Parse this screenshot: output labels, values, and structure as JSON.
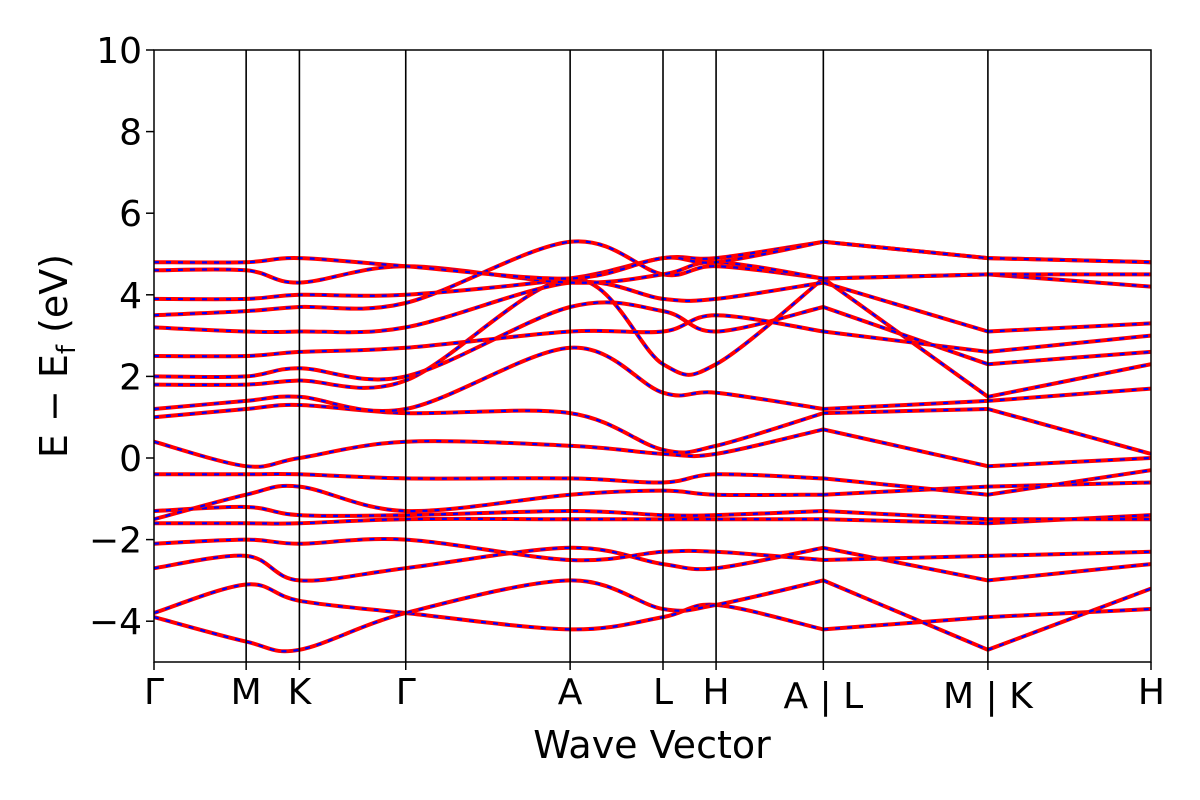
{
  "chart_data": {
    "type": "line",
    "title": "",
    "xlabel": "Wave Vector",
    "ylabel": "E − E",
    "ylabel_subscript": "f",
    "ylabel_unit": "(eV)",
    "ylim": [
      -5,
      10
    ],
    "yticks": [
      -4,
      -2,
      0,
      2,
      4,
      6,
      8,
      10
    ],
    "grid": false,
    "legend": "none",
    "kpoint_positions": [
      0,
      0.5,
      0.789,
      1.366,
      2.258,
      2.762,
      3.05,
      3.632,
      4.525,
      5.41
    ],
    "kpoint_labels": [
      "Γ",
      "M",
      "K",
      "Γ",
      "A",
      "L",
      "H",
      "A | L",
      "M | K",
      "H"
    ],
    "kpath_breaks": [
      3.632,
      4.525
    ],
    "colors": {
      "series_a": "#ff0000",
      "series_b": "#0000ff",
      "axis": "#000000"
    },
    "series": [
      {
        "name": "",
        "color": "#ff0000",
        "style": "solid"
      },
      {
        "name": "",
        "color": "#0000ff",
        "style": "dashed"
      }
    ],
    "bands": [
      [
        -3.8,
        -3.1,
        -3.5,
        -3.8,
        -4.2,
        -3.9,
        -3.6,
        -4.2,
        -3.9,
        -3.7
      ],
      [
        -3.9,
        -4.5,
        -4.7,
        -3.8,
        -3.0,
        -3.7,
        -3.6,
        -3.0,
        -4.7,
        -3.2
      ],
      [
        -2.7,
        -2.4,
        -3.0,
        -2.7,
        -2.2,
        -2.6,
        -2.7,
        -2.2,
        -3.0,
        -2.6
      ],
      [
        -2.1,
        -2.0,
        -2.1,
        -2.0,
        -2.5,
        -2.3,
        -2.3,
        -2.5,
        -2.4,
        -2.3
      ],
      [
        -1.6,
        -1.6,
        -1.6,
        -1.5,
        -1.5,
        -1.5,
        -1.5,
        -1.5,
        -1.6,
        -1.4
      ],
      [
        -1.3,
        -1.2,
        -1.4,
        -1.4,
        -1.3,
        -1.4,
        -1.4,
        -1.3,
        -1.5,
        -1.5
      ],
      [
        -1.5,
        -0.9,
        -0.7,
        -1.3,
        -0.9,
        -0.8,
        -0.9,
        -0.9,
        -0.7,
        -0.6
      ],
      [
        -0.4,
        -0.4,
        -0.4,
        -0.5,
        -0.5,
        -0.6,
        -0.4,
        -0.5,
        -0.9,
        -0.3
      ],
      [
        0.4,
        -0.2,
        0.0,
        0.4,
        0.3,
        0.1,
        0.1,
        0.7,
        -0.2,
        0.0
      ],
      [
        1.0,
        1.2,
        1.3,
        1.1,
        1.1,
        0.2,
        0.3,
        1.1,
        1.2,
        0.1
      ],
      [
        1.2,
        1.4,
        1.5,
        1.2,
        2.7,
        1.6,
        1.6,
        1.2,
        1.4,
        1.7
      ],
      [
        1.8,
        1.8,
        1.9,
        1.9,
        4.4,
        2.3,
        2.3,
        4.4,
        1.5,
        2.3
      ],
      [
        2.0,
        2.0,
        2.2,
        2.0,
        3.7,
        3.6,
        3.1,
        3.7,
        2.3,
        2.6
      ],
      [
        2.5,
        2.5,
        2.6,
        2.7,
        3.1,
        3.1,
        3.5,
        3.1,
        2.6,
        3.0
      ],
      [
        3.2,
        3.1,
        3.1,
        3.2,
        4.3,
        3.9,
        3.9,
        4.3,
        3.1,
        3.3
      ],
      [
        3.5,
        3.6,
        3.7,
        3.8,
        5.3,
        4.5,
        4.7,
        4.4,
        4.5,
        4.2
      ],
      [
        3.9,
        3.9,
        4.0,
        4.0,
        4.4,
        4.9,
        4.9,
        5.3,
        4.9,
        4.8
      ],
      [
        4.6,
        4.6,
        4.3,
        4.7,
        4.3,
        4.5,
        4.8,
        4.4,
        4.5,
        4.5
      ],
      [
        4.8,
        4.8,
        4.9,
        4.7,
        4.4,
        4.9,
        4.8,
        5.3,
        4.9,
        4.8
      ]
    ]
  }
}
